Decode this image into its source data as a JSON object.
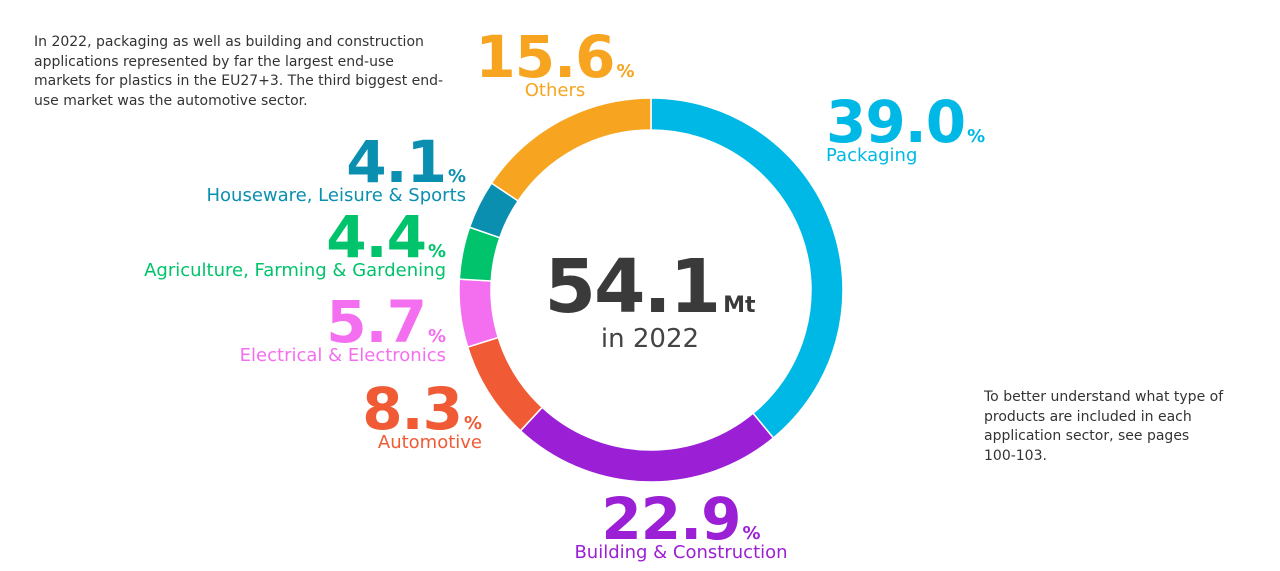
{
  "intro_text": "In 2022, packaging as well as building and construction applications represented by far the largest end-use markets for plastics in the EU27+3. The third biggest end-use market was the automotive sector.",
  "note_text": "To better understand what type of products are included in each application sector, see pages 100-103.",
  "center": {
    "total": "54.1",
    "unit": "Mt",
    "year": "in 2022"
  },
  "chart_data": {
    "type": "pie",
    "subtype": "donut",
    "categories": [
      "Packaging",
      "Building & Construction",
      "Automotive",
      "Electrical & Electronics",
      "Agriculture, Farming & Gardening",
      "Houseware, Leisure & Sports",
      "Others"
    ],
    "values": [
      39.0,
      22.9,
      8.3,
      5.7,
      4.4,
      4.1,
      15.6
    ],
    "value_labels": [
      "39.0",
      "22.9",
      "8.3",
      "5.7",
      "4.4",
      "4.1",
      "15.6"
    ],
    "unit": "%",
    "colors": [
      "#00b8e6",
      "#9b1fd4",
      "#f05a35",
      "#f36ff0",
      "#00c36b",
      "#0a8fb0",
      "#f7a520"
    ],
    "start_angle_deg": 0,
    "direction": "clockwise",
    "total": 54.1,
    "total_unit": "Mt",
    "legend": "none"
  }
}
